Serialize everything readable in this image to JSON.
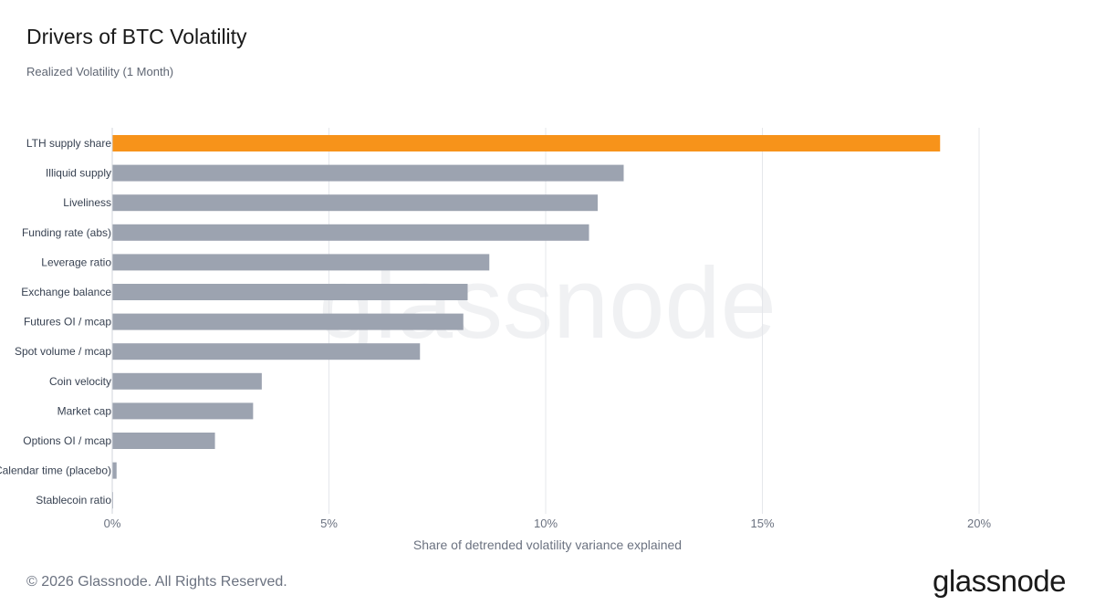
{
  "header": {
    "title": "Drivers of BTC Volatility",
    "subtitle": "Realized Volatility (1 Month)"
  },
  "footer": {
    "copyright": "© 2026 Glassnode. All Rights Reserved.",
    "brand": "glassnode"
  },
  "watermark": "glassnode",
  "colors": {
    "highlight": "#f7931a",
    "bar": "#9ca3b0",
    "grid": "#e5e7eb",
    "axis_text": "#6b7280",
    "label_text": "#374151"
  },
  "chart_data": {
    "type": "bar",
    "orientation": "horizontal",
    "categories": [
      "LTH supply share",
      "Illiquid supply",
      "Liveliness",
      "Funding rate (abs)",
      "Leverage ratio",
      "Exchange balance",
      "Futures OI / mcap",
      "Spot volume / mcap",
      "Coin velocity",
      "Market cap",
      "Options OI / mcap",
      "Calendar time (placebo)",
      "Stablecoin ratio"
    ],
    "values": [
      19.1,
      11.8,
      11.2,
      11.0,
      8.7,
      8.2,
      8.1,
      7.1,
      3.45,
      3.25,
      2.37,
      0.1,
      0.02
    ],
    "highlight_index": 0,
    "xlim": [
      0,
      20
    ],
    "xticks": [
      0,
      5,
      10,
      15,
      20
    ],
    "xtick_labels": [
      "0%",
      "5%",
      "10%",
      "15%",
      "20%"
    ],
    "xlabel": "Share of detrended volatility variance explained",
    "grid": "vertical"
  }
}
